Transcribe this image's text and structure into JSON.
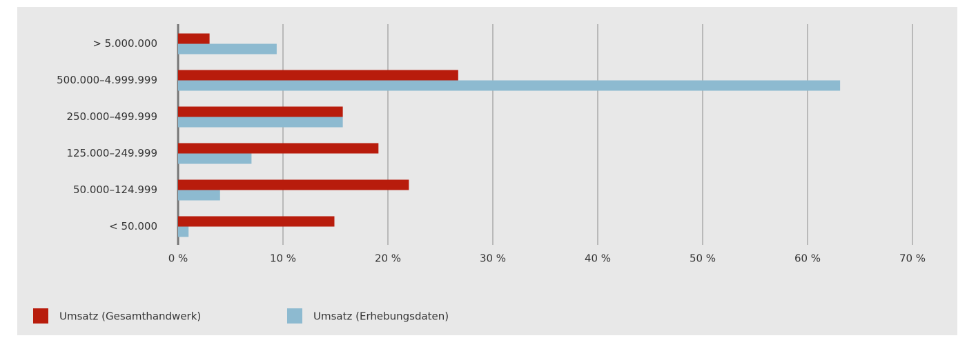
{
  "chart_data": {
    "type": "hbar",
    "categories": [
      "> 5.000.000",
      "500.000–4.999.999",
      "250.000–499.999",
      "125.000–249.999",
      "50.000–124.999",
      "< 50.000"
    ],
    "series": [
      {
        "name": "Umsatz (Gesamthandwerk)",
        "color": "#b81c0c",
        "values": [
          3.0,
          26.7,
          15.7,
          19.1,
          22.0,
          14.9
        ]
      },
      {
        "name": "Umsatz (Erhebungsdaten)",
        "color": "#8dbad0",
        "values": [
          9.4,
          63.1,
          15.7,
          7.0,
          4.0,
          1.0
        ]
      }
    ],
    "xlim": [
      0,
      70
    ],
    "xticks": [
      {
        "value": 0,
        "label": "0 %"
      },
      {
        "value": 10,
        "label": "10 %"
      },
      {
        "value": 20,
        "label": "20 %"
      },
      {
        "value": 30,
        "label": "30 %"
      },
      {
        "value": 40,
        "label": "40 %"
      },
      {
        "value": 50,
        "label": "50 %"
      },
      {
        "value": 60,
        "label": "60 %"
      },
      {
        "value": 70,
        "label": "70 %"
      }
    ],
    "grid": true
  }
}
